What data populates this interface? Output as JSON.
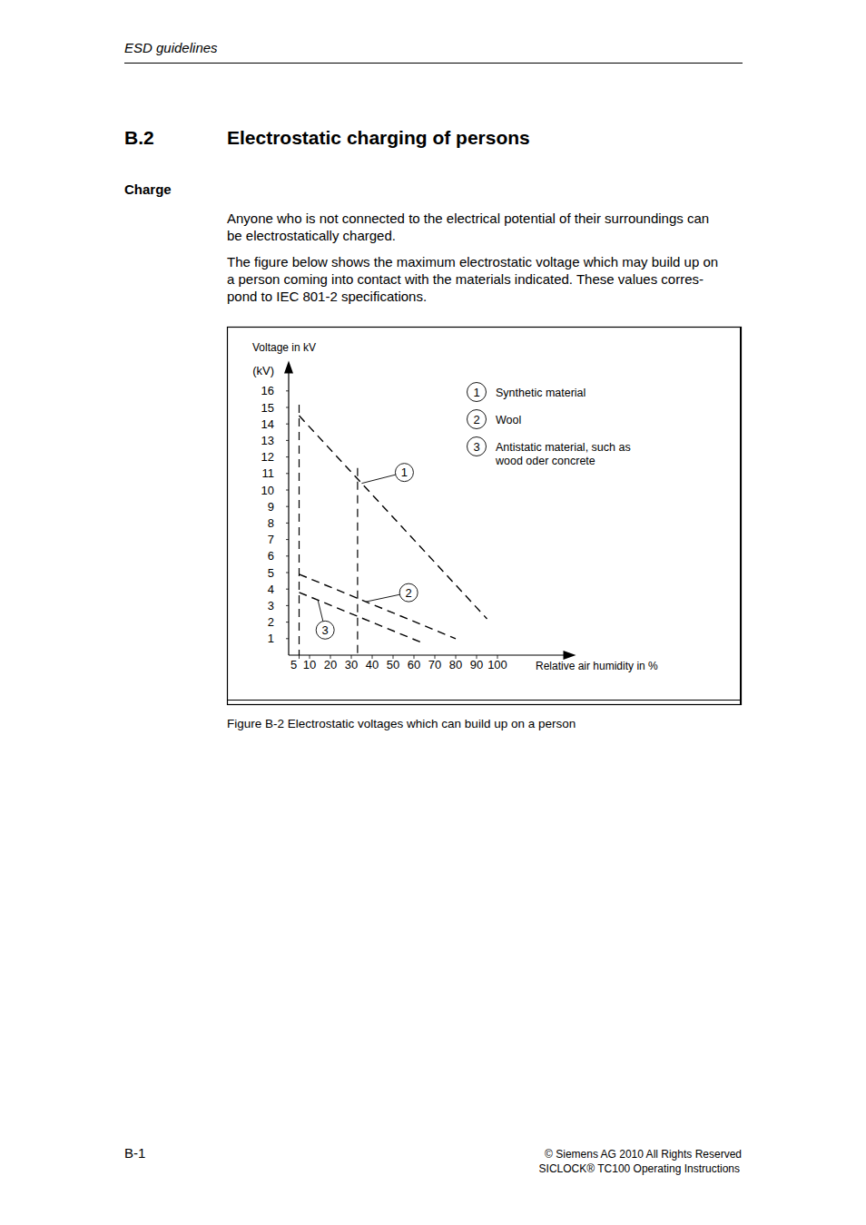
{
  "header": {
    "title": "ESD guidelines"
  },
  "section": {
    "number": "B.2",
    "title": "Electrostatic charging of persons"
  },
  "subheading": "Charge",
  "paragraphs": [
    {
      "lines": [
        "Anyone who is not connected to the electrical potential of their surroundings can",
        "be electrostatically charged."
      ]
    },
    {
      "lines": [
        "The figure below shows the maximum electrostatic voltage which may build up on",
        "a person coming into contact with the materials indicated. These values corres-",
        "pond to IEC 801-2 specifications."
      ]
    }
  ],
  "chart_data": {
    "type": "line",
    "y_title": "Voltage in kV",
    "y_unit": "(kV)",
    "x_label": "Relative air humidity in %",
    "xlim": [
      0,
      135
    ],
    "xticks": [
      5,
      10,
      20,
      30,
      40,
      50,
      60,
      70,
      80,
      90,
      100
    ],
    "ylim": [
      0,
      17.5
    ],
    "yticks": [
      1,
      2,
      3,
      4,
      5,
      6,
      7,
      8,
      9,
      10,
      11,
      12,
      13,
      14,
      15,
      16
    ],
    "grid": false,
    "color": "#000000",
    "line_style": "dashed",
    "reference_x": [
      5,
      33
    ],
    "series": [
      {
        "name": "Synthetic material",
        "label": "1",
        "x": [
          5,
          95
        ],
        "values": [
          14.5,
          2.2
        ]
      },
      {
        "name": "Wool",
        "label": "2",
        "x": [
          5,
          80
        ],
        "values": [
          4.9,
          1.0
        ]
      },
      {
        "name": "Antistatic material, such as wood oder concrete",
        "label": "3",
        "x": [
          5,
          63
        ],
        "values": [
          3.8,
          0.8
        ]
      }
    ]
  },
  "caption": "Figure B-2 Electrostatic voltages which can build up on a person",
  "footer": {
    "page": "B-1",
    "copyright": "© Siemens AG 2010 All Rights Reserved",
    "document": "SICLOCK® TC100 Operating Instructions"
  }
}
